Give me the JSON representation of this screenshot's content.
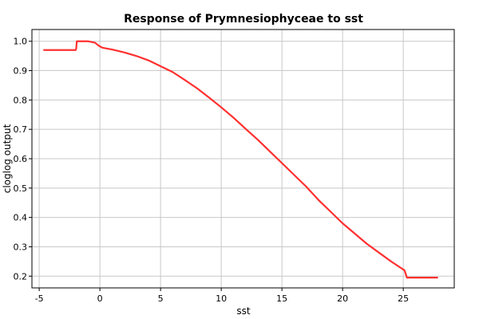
{
  "chart_data": {
    "type": "line",
    "title": "Response of Prymnesiophyceae to sst",
    "xlabel": "sst",
    "ylabel": "cloglog output",
    "xlim": [
      -5.6,
      29.2
    ],
    "ylim": [
      0.16,
      1.04
    ],
    "x_ticks": [
      -5,
      0,
      5,
      10,
      15,
      20,
      25
    ],
    "y_ticks": [
      0.2,
      0.3,
      0.4,
      0.5,
      0.6,
      0.7,
      0.8,
      0.9,
      1.0
    ],
    "grid": true,
    "series": [
      {
        "color": "#ff3030",
        "x": [
          -4.6,
          -2.0,
          -1.95,
          -1.9,
          -1.0,
          -0.4,
          -0.1,
          0.2,
          0.6,
          1.0,
          2.0,
          3.0,
          4.0,
          5.0,
          6.0,
          7.0,
          8.0,
          9.0,
          10.0,
          11.0,
          12.0,
          13.0,
          14.0,
          15.0,
          16.0,
          17.0,
          18.0,
          19.0,
          20.0,
          21.0,
          22.0,
          23.0,
          24.0,
          25.1,
          25.3,
          26.0,
          27.0,
          27.8
        ],
        "y": [
          0.97,
          0.97,
          0.975,
          1.0,
          1.0,
          0.995,
          0.985,
          0.978,
          0.975,
          0.972,
          0.962,
          0.95,
          0.935,
          0.915,
          0.895,
          0.868,
          0.84,
          0.808,
          0.775,
          0.74,
          0.702,
          0.665,
          0.625,
          0.585,
          0.545,
          0.505,
          0.46,
          0.42,
          0.38,
          0.345,
          0.31,
          0.28,
          0.25,
          0.22,
          0.195,
          0.195,
          0.195,
          0.195
        ]
      }
    ]
  }
}
